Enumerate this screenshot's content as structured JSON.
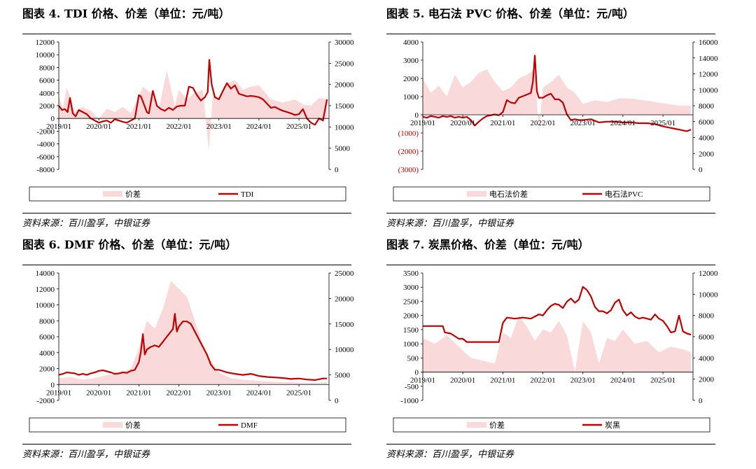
{
  "source_text": "资料来源：百川盈孚，中银证券",
  "chart_data": [
    {
      "type": "area+line",
      "title": "图表 4. TDI 价格、价差（单位：元/吨）",
      "x_ticks": [
        "2019/01",
        "2020/01",
        "2021/01",
        "2022/01",
        "2023/01",
        "2024/01",
        "2025/01"
      ],
      "x_range": [
        2019.0,
        2025.75
      ],
      "left_axis": {
        "range": [
          -8000,
          12000
        ],
        "ticks": [
          12000,
          10000,
          8000,
          6000,
          4000,
          2000,
          0,
          -2000,
          -4000,
          -6000,
          -8000
        ]
      },
      "right_axis": {
        "range": [
          0,
          30000
        ],
        "ticks": [
          30000,
          25000,
          20000,
          15000,
          10000,
          5000,
          0
        ]
      },
      "series": [
        {
          "name": "价差",
          "kind": "area",
          "axis": "left",
          "color": "#f9d9d9",
          "x": [
            2019.0,
            2019.1,
            2019.2,
            2019.3,
            2019.4,
            2019.6,
            2019.8,
            2020.0,
            2020.2,
            2020.4,
            2020.6,
            2020.8,
            2021.0,
            2021.1,
            2021.3,
            2021.5,
            2021.7,
            2021.9,
            2022.0,
            2022.2,
            2022.4,
            2022.6,
            2022.75,
            2022.85,
            2023.0,
            2023.2,
            2023.4,
            2023.6,
            2023.8,
            2024.0,
            2024.3,
            2024.6,
            2024.9,
            2025.1,
            2025.3,
            2025.5,
            2025.7
          ],
          "y": [
            3500,
            1500,
            4800,
            3200,
            1000,
            1800,
            1200,
            0,
            1500,
            1000,
            1800,
            800,
            3500,
            5000,
            4000,
            1500,
            7500,
            2000,
            4500,
            3000,
            4000,
            4500,
            -5000,
            4000,
            3000,
            5500,
            6000,
            4500,
            5000,
            5200,
            3000,
            2500,
            3000,
            2200,
            2000,
            3200,
            3000
          ]
        },
        {
          "name": "TDI",
          "kind": "line",
          "axis": "right",
          "color": "#c00000",
          "x": [
            2019.0,
            2019.08,
            2019.15,
            2019.22,
            2019.28,
            2019.35,
            2019.42,
            2019.5,
            2019.6,
            2019.7,
            2019.8,
            2019.9,
            2020.0,
            2020.1,
            2020.2,
            2020.3,
            2020.4,
            2020.5,
            2020.6,
            2020.7,
            2020.8,
            2020.9,
            2021.0,
            2021.05,
            2021.1,
            2021.2,
            2021.25,
            2021.35,
            2021.45,
            2021.55,
            2021.65,
            2021.75,
            2021.85,
            2021.95,
            2022.05,
            2022.15,
            2022.25,
            2022.35,
            2022.45,
            2022.55,
            2022.65,
            2022.72,
            2022.76,
            2022.82,
            2022.9,
            2023.0,
            2023.1,
            2023.2,
            2023.3,
            2023.4,
            2023.5,
            2023.6,
            2023.7,
            2023.8,
            2023.9,
            2024.0,
            2024.1,
            2024.2,
            2024.3,
            2024.4,
            2024.5,
            2024.6,
            2024.7,
            2024.8,
            2024.9,
            2025.0,
            2025.1,
            2025.2,
            2025.3,
            2025.4,
            2025.5,
            2025.6,
            2025.7
          ],
          "y": [
            15000,
            14000,
            14200,
            13500,
            16800,
            13200,
            12500,
            14000,
            13500,
            13000,
            12000,
            11500,
            11000,
            11300,
            11500,
            11000,
            11800,
            11500,
            11200,
            11000,
            11500,
            12000,
            17500,
            17200,
            16000,
            13500,
            13200,
            18500,
            15000,
            14200,
            13800,
            14500,
            14000,
            14800,
            15000,
            15000,
            19500,
            19200,
            17500,
            16200,
            17000,
            18200,
            25800,
            20000,
            17000,
            16500,
            18500,
            20300,
            19000,
            19800,
            17800,
            17500,
            17200,
            17300,
            17200,
            17000,
            16500,
            15500,
            14500,
            14700,
            14200,
            13800,
            13500,
            13200,
            12800,
            13000,
            14200,
            12000,
            11000,
            10500,
            12000,
            11500,
            16500
          ]
        }
      ]
    },
    {
      "type": "area+line",
      "title": "图表 5. 电石法 PVC 价格、价差（单位：元/吨）",
      "x_ticks": [
        "2019/01",
        "2020/01",
        "2021/01",
        "2022/01",
        "2023/01",
        "2024/01",
        "2025/01"
      ],
      "x_range": [
        2019.0,
        2025.75
      ],
      "left_axis": {
        "range": [
          -3000,
          4000
        ],
        "ticks": [
          4000,
          3000,
          2000,
          1000,
          0,
          -1000,
          -2000,
          -3000
        ],
        "negative_format": "paren-red"
      },
      "right_axis": {
        "range": [
          0,
          16000
        ],
        "ticks": [
          16000,
          14000,
          12000,
          10000,
          8000,
          6000,
          4000,
          2000,
          0
        ]
      },
      "series": [
        {
          "name": "电石法价差",
          "kind": "area",
          "axis": "left",
          "color": "#f9d9d9",
          "x": [
            2019.0,
            2019.2,
            2019.4,
            2019.6,
            2019.8,
            2020.0,
            2020.2,
            2020.4,
            2020.6,
            2020.8,
            2021.0,
            2021.2,
            2021.4,
            2021.6,
            2021.8,
            2021.9,
            2022.0,
            2022.2,
            2022.4,
            2022.6,
            2022.8,
            2023.0,
            2023.3,
            2023.6,
            2023.9,
            2024.2,
            2024.5,
            2024.8,
            2025.1,
            2025.4,
            2025.7
          ],
          "y": [
            2000,
            1200,
            1600,
            1000,
            2200,
            1500,
            1800,
            2300,
            2500,
            1800,
            1300,
            1500,
            2000,
            2200,
            2500,
            -1000,
            1500,
            1800,
            2200,
            1500,
            1200,
            600,
            800,
            700,
            900,
            900,
            800,
            700,
            600,
            500,
            500
          ]
        },
        {
          "name": "电石法PVC",
          "kind": "line",
          "axis": "right",
          "color": "#c00000",
          "x": [
            2019.0,
            2019.1,
            2019.2,
            2019.3,
            2019.4,
            2019.5,
            2019.6,
            2019.7,
            2019.8,
            2019.9,
            2020.0,
            2020.1,
            2020.2,
            2020.3,
            2020.4,
            2020.5,
            2020.6,
            2020.7,
            2020.8,
            2020.9,
            2021.0,
            2021.1,
            2021.2,
            2021.3,
            2021.4,
            2021.5,
            2021.6,
            2021.7,
            2021.75,
            2021.8,
            2021.85,
            2021.9,
            2022.0,
            2022.1,
            2022.2,
            2022.3,
            2022.4,
            2022.5,
            2022.6,
            2022.7,
            2022.8,
            2022.9,
            2023.0,
            2023.2,
            2023.4,
            2023.6,
            2023.8,
            2024.0,
            2024.2,
            2024.4,
            2024.6,
            2024.8,
            2025.0,
            2025.1,
            2025.2,
            2025.3,
            2025.4,
            2025.5,
            2025.6,
            2025.7
          ],
          "y": [
            6600,
            6500,
            6700,
            6600,
            6500,
            6700,
            6600,
            6700,
            6500,
            6600,
            6500,
            6600,
            6200,
            5500,
            6000,
            6400,
            6700,
            6800,
            6900,
            6800,
            7200,
            8700,
            8400,
            8300,
            9000,
            9200,
            9400,
            9600,
            11000,
            14300,
            9800,
            9000,
            9000,
            9300,
            9500,
            8800,
            8800,
            8400,
            6900,
            6200,
            6300,
            6200,
            6200,
            6300,
            5900,
            6000,
            6000,
            5900,
            5900,
            5800,
            5800,
            5700,
            5400,
            5300,
            5200,
            5100,
            5000,
            4900,
            4800,
            5000
          ]
        }
      ]
    },
    {
      "type": "area+line",
      "title": "图表 6. DMF 价格、价差（单位：元/吨）",
      "x_ticks": [
        "2019/01",
        "2020/01",
        "2021/01",
        "2022/01",
        "2023/01",
        "2024/01",
        "2025/01"
      ],
      "x_range": [
        2019.0,
        2025.75
      ],
      "left_axis": {
        "range": [
          -2000,
          14000
        ],
        "ticks": [
          14000,
          12000,
          10000,
          8000,
          6000,
          4000,
          2000,
          0,
          -2000
        ]
      },
      "right_axis": {
        "range": [
          0,
          25000
        ],
        "ticks": [
          25000,
          20000,
          15000,
          10000,
          5000,
          0
        ]
      },
      "series": [
        {
          "name": "价差",
          "kind": "area",
          "axis": "left",
          "color": "#f9d9d9",
          "x": [
            2019.0,
            2019.3,
            2019.6,
            2019.9,
            2020.2,
            2020.5,
            2020.8,
            2021.0,
            2021.2,
            2021.4,
            2021.6,
            2021.8,
            2022.0,
            2022.2,
            2022.4,
            2022.6,
            2022.8,
            2023.0,
            2023.3,
            2023.6,
            2023.9,
            2024.2,
            2024.5,
            2024.8,
            2025.1,
            2025.4,
            2025.7
          ],
          "y": [
            800,
            900,
            600,
            800,
            1200,
            1300,
            2000,
            4500,
            8000,
            7000,
            9500,
            13000,
            12000,
            11000,
            8000,
            5000,
            3000,
            1500,
            800,
            600,
            500,
            400,
            300,
            300,
            200,
            200,
            300
          ]
        },
        {
          "name": "DMF",
          "kind": "line",
          "axis": "right",
          "color": "#c00000",
          "x": [
            2019.0,
            2019.1,
            2019.2,
            2019.3,
            2019.4,
            2019.5,
            2019.6,
            2019.7,
            2019.8,
            2019.9,
            2020.0,
            2020.1,
            2020.2,
            2020.3,
            2020.4,
            2020.5,
            2020.6,
            2020.7,
            2020.8,
            2020.9,
            2021.0,
            2021.05,
            2021.1,
            2021.15,
            2021.2,
            2021.3,
            2021.4,
            2021.5,
            2021.6,
            2021.7,
            2021.8,
            2021.85,
            2021.9,
            2021.95,
            2022.0,
            2022.1,
            2022.2,
            2022.3,
            2022.4,
            2022.5,
            2022.6,
            2022.7,
            2022.8,
            2022.9,
            2023.0,
            2023.2,
            2023.4,
            2023.6,
            2023.8,
            2024.0,
            2024.2,
            2024.4,
            2024.6,
            2024.8,
            2025.0,
            2025.2,
            2025.4,
            2025.6,
            2025.7
          ],
          "y": [
            5000,
            5200,
            5500,
            5400,
            5300,
            5000,
            5200,
            5000,
            5300,
            5500,
            5800,
            5900,
            5700,
            5500,
            5200,
            5300,
            5500,
            5400,
            5800,
            6000,
            7500,
            9500,
            13000,
            9000,
            10000,
            10500,
            10800,
            10500,
            11500,
            12500,
            13500,
            14000,
            17000,
            13500,
            14500,
            15500,
            15500,
            15000,
            13500,
            12000,
            10500,
            9000,
            7000,
            6000,
            6000,
            5500,
            5200,
            5000,
            5200,
            4800,
            4600,
            4500,
            4400,
            4200,
            4300,
            4100,
            4000,
            4300,
            4300
          ]
        }
      ]
    },
    {
      "type": "area+line",
      "title": "图表 7. 炭黑价格、价差（单位：元/吨）",
      "x_ticks": [
        "2019/01",
        "2020/01",
        "2021/01",
        "2022/01",
        "2023/01",
        "2024/01",
        "2025/01"
      ],
      "x_range": [
        2019.0,
        2025.75
      ],
      "left_axis": {
        "range": [
          -1000,
          3500
        ],
        "ticks": [
          3500,
          3000,
          2500,
          2000,
          1500,
          1000,
          500,
          0,
          -500,
          -1000
        ]
      },
      "right_axis": {
        "range": [
          0,
          12000
        ],
        "ticks": [
          12000,
          10000,
          8000,
          6000,
          4000,
          2000,
          0
        ]
      },
      "series": [
        {
          "name": "价差",
          "kind": "area",
          "axis": "left",
          "color": "#f9d9d9",
          "x": [
            2019.0,
            2019.3,
            2019.6,
            2019.9,
            2020.2,
            2020.5,
            2020.8,
            2021.0,
            2021.2,
            2021.4,
            2021.6,
            2021.8,
            2022.0,
            2022.2,
            2022.4,
            2022.6,
            2022.8,
            2023.0,
            2023.2,
            2023.4,
            2023.6,
            2023.8,
            2024.0,
            2024.3,
            2024.6,
            2024.9,
            2025.2,
            2025.5,
            2025.7
          ],
          "y": [
            1200,
            1000,
            1300,
            900,
            500,
            400,
            300,
            1400,
            1200,
            2000,
            1600,
            1100,
            1500,
            1400,
            1800,
            1300,
            0,
            1800,
            1400,
            300,
            1200,
            1100,
            1500,
            1000,
            1100,
            700,
            900,
            800,
            700
          ]
        },
        {
          "name": "炭黑",
          "kind": "line",
          "axis": "right",
          "color": "#c00000",
          "x": [
            2019.0,
            2019.2,
            2019.4,
            2019.5,
            2019.55,
            2019.7,
            2019.9,
            2020.0,
            2020.1,
            2020.2,
            2020.3,
            2020.5,
            2020.7,
            2020.9,
            2021.0,
            2021.1,
            2021.3,
            2021.5,
            2021.7,
            2021.9,
            2022.0,
            2022.1,
            2022.2,
            2022.3,
            2022.4,
            2022.5,
            2022.6,
            2022.7,
            2022.8,
            2022.9,
            2023.0,
            2023.1,
            2023.2,
            2023.3,
            2023.4,
            2023.5,
            2023.6,
            2023.7,
            2023.8,
            2023.9,
            2024.0,
            2024.1,
            2024.2,
            2024.3,
            2024.4,
            2024.5,
            2024.6,
            2024.7,
            2024.8,
            2024.9,
            2025.0,
            2025.1,
            2025.2,
            2025.3,
            2025.4,
            2025.5,
            2025.6,
            2025.7
          ],
          "y": [
            7000,
            7000,
            7000,
            7000,
            6400,
            6300,
            5800,
            5800,
            5500,
            5500,
            5500,
            5500,
            5500,
            5500,
            7300,
            7800,
            7700,
            7800,
            7700,
            8100,
            8000,
            8500,
            8900,
            9100,
            9000,
            8700,
            9300,
            9600,
            9200,
            9500,
            10700,
            10400,
            9800,
            8800,
            8400,
            8400,
            8200,
            8500,
            9200,
            9500,
            8500,
            8000,
            8300,
            7900,
            7700,
            7800,
            7700,
            7600,
            8100,
            7700,
            7500,
            7000,
            6400,
            6500,
            8000,
            6500,
            6300,
            6200
          ]
        }
      ]
    }
  ]
}
